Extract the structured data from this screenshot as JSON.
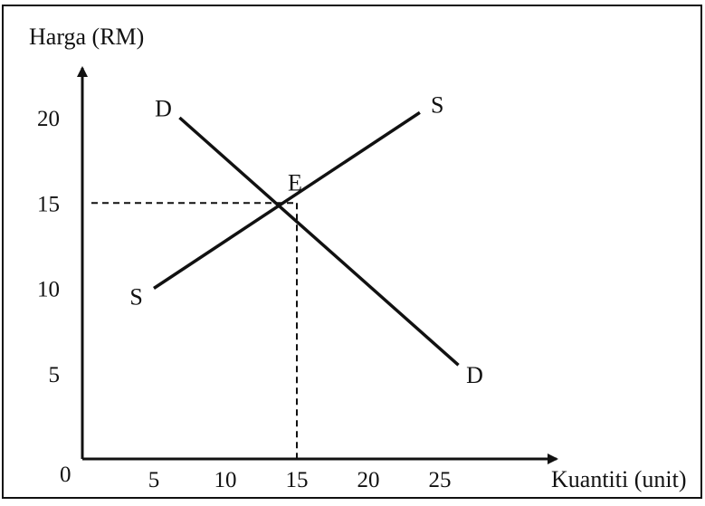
{
  "chart_data": {
    "type": "line",
    "ylabel": "Harga (RM)",
    "xlabel": "Kuantiti (unit)",
    "origin_label": "0",
    "x_ticks": [
      5,
      10,
      15,
      20,
      25
    ],
    "y_ticks": [
      5,
      10,
      15,
      20
    ],
    "xlim": [
      0,
      32.3
    ],
    "ylim": [
      0,
      23.8
    ],
    "grid": false,
    "series": [
      {
        "name": "D",
        "points": [
          [
            6.8,
            20
          ],
          [
            26.3,
            5.5
          ]
        ]
      },
      {
        "name": "S",
        "points": [
          [
            5.0,
            10.0
          ],
          [
            23.6,
            20.3
          ]
        ]
      }
    ],
    "equilibrium": {
      "label": "E",
      "x": 15,
      "y": 15
    },
    "colors": {
      "line": "#111111",
      "frame": "#111111",
      "background": "#ffffff"
    }
  }
}
